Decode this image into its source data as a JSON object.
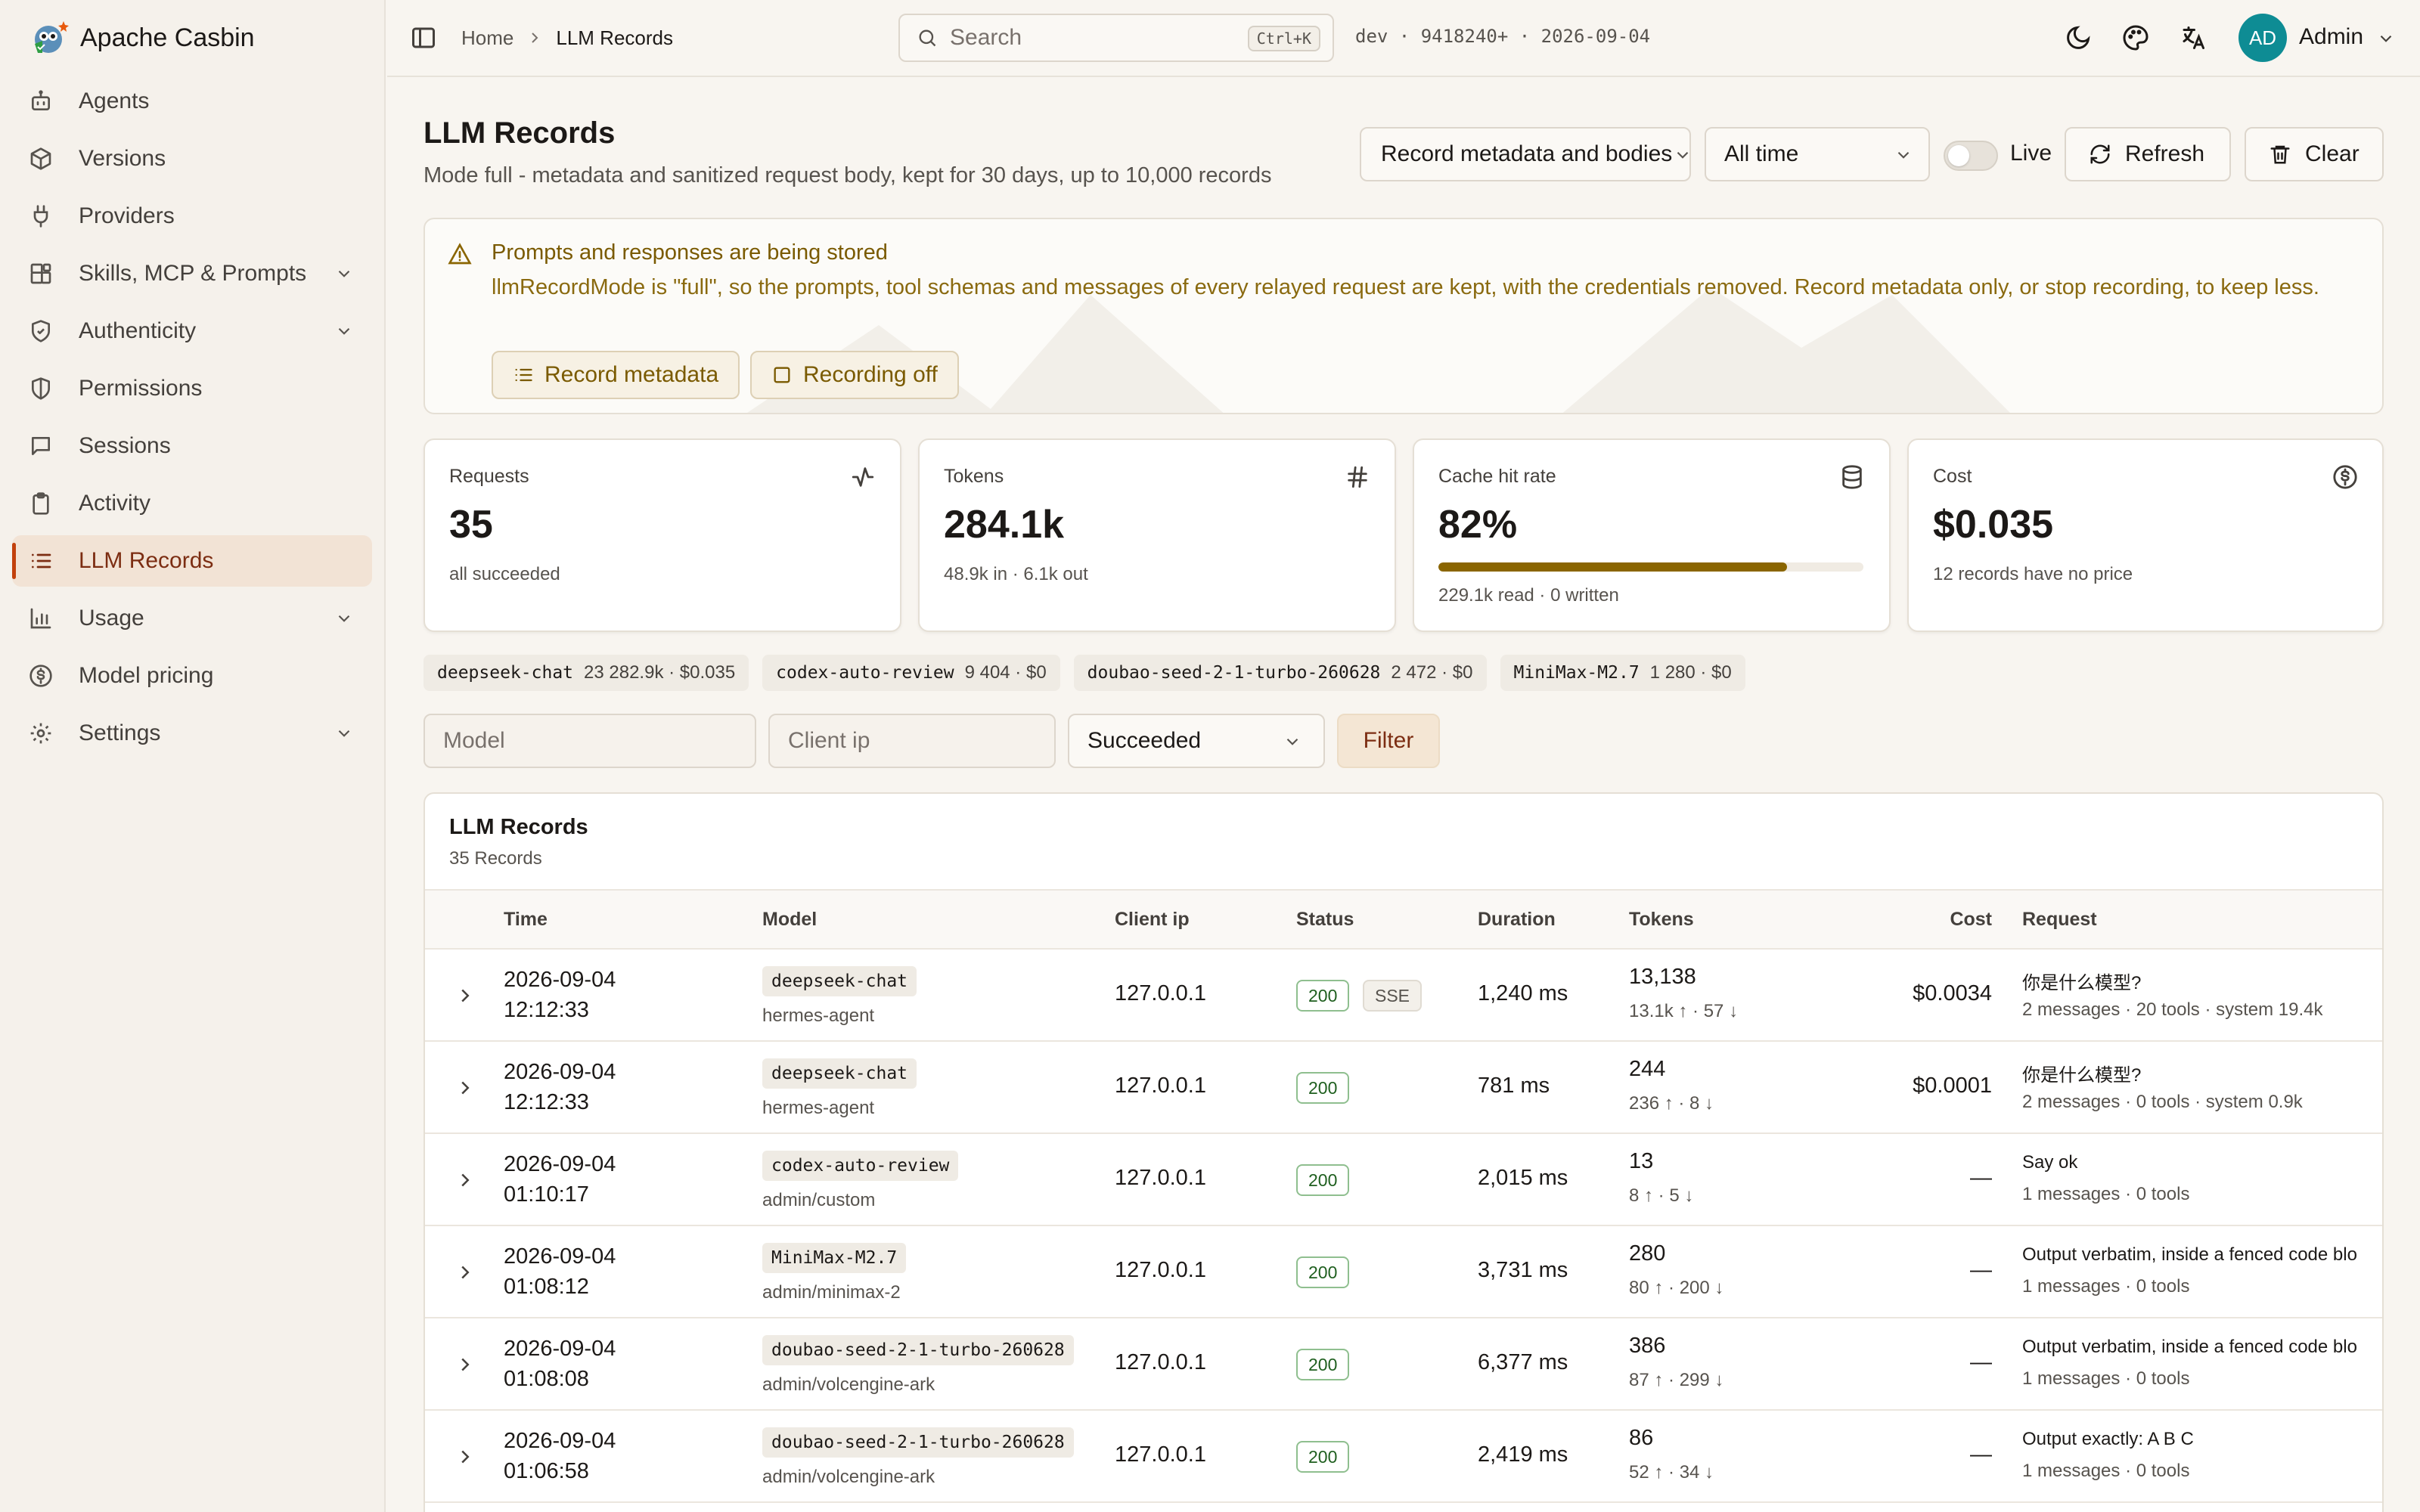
{
  "app": {
    "name": "Apache Casbin"
  },
  "sidebar": {
    "items": [
      {
        "label": "Agents",
        "icon": "bot-icon",
        "expandable": false
      },
      {
        "label": "Versions",
        "icon": "package-icon",
        "expandable": false
      },
      {
        "label": "Providers",
        "icon": "plug-icon",
        "expandable": false
      },
      {
        "label": "Skills, MCP & Prompts",
        "icon": "blocks-icon",
        "expandable": true
      },
      {
        "label": "Authenticity",
        "icon": "shield-check-icon",
        "expandable": true
      },
      {
        "label": "Permissions",
        "icon": "shield-half-icon",
        "expandable": false
      },
      {
        "label": "Sessions",
        "icon": "message-square-icon",
        "expandable": false
      },
      {
        "label": "Activity",
        "icon": "clipboard-icon",
        "expandable": false
      },
      {
        "label": "LLM Records",
        "icon": "list-icon",
        "expandable": false,
        "active": true
      },
      {
        "label": "Usage",
        "icon": "bar-chart-icon",
        "expandable": true
      },
      {
        "label": "Model pricing",
        "icon": "dollar-circle-icon",
        "expandable": false
      },
      {
        "label": "Settings",
        "icon": "gear-icon",
        "expandable": true
      }
    ]
  },
  "topbar": {
    "breadcrumb": {
      "home": "Home",
      "current": "LLM Records"
    },
    "search": {
      "placeholder": "Search",
      "shortcut": "Ctrl+K"
    },
    "env": "dev · 9418240+ · 2026-09-04",
    "user": {
      "initials": "AD",
      "name": "Admin"
    }
  },
  "page": {
    "title": "LLM Records",
    "subtitle": "Mode full - metadata and sanitized request body, kept for 30 days, up to 10,000 records",
    "controls": {
      "mode_select": "Record metadata and bodies",
      "range_select": "All time",
      "live_label": "Live",
      "refresh_label": "Refresh",
      "clear_label": "Clear"
    }
  },
  "alert": {
    "title": "Prompts and responses are being stored",
    "body": "llmRecordMode is \"full\", so the prompts, tool schemas and messages of every relayed request are kept, with the credentials removed. Record metadata only, or stop recording, to keep less.",
    "btn_metadata": "Record metadata",
    "btn_off": "Recording off"
  },
  "stats": {
    "requests": {
      "label": "Requests",
      "value": "35",
      "sub": "all succeeded"
    },
    "tokens": {
      "label": "Tokens",
      "value": "284.1k",
      "sub": "48.9k in · 6.1k out"
    },
    "cache": {
      "label": "Cache hit rate",
      "value": "82%",
      "fill": 0.82,
      "sub": "229.1k read · 0 written"
    },
    "cost": {
      "label": "Cost",
      "value": "$0.035",
      "sub": "12 records have no price"
    }
  },
  "model_chips": [
    {
      "name": "deepseek-chat",
      "stats": "23  282.9k · $0.035"
    },
    {
      "name": "codex-auto-review",
      "stats": "9  404 · $0"
    },
    {
      "name": "doubao-seed-2-1-turbo-260628",
      "stats": "2  472 · $0"
    },
    {
      "name": "MiniMax-M2.7",
      "stats": "1  280 · $0"
    }
  ],
  "filters": {
    "model_placeholder": "Model",
    "ip_placeholder": "Client ip",
    "status_value": "Succeeded",
    "filter_label": "Filter"
  },
  "table": {
    "title": "LLM Records",
    "count": "35 Records",
    "columns": {
      "time": "Time",
      "model": "Model",
      "ip": "Client ip",
      "status": "Status",
      "duration": "Duration",
      "tokens": "Tokens",
      "cost": "Cost",
      "request": "Request"
    },
    "rows": [
      {
        "date": "2026-09-04",
        "clock": "12:12:33",
        "model": "deepseek-chat",
        "agent": "hermes-agent",
        "ip": "127.0.0.1",
        "status": "200",
        "sse": "SSE",
        "duration": "1,240 ms",
        "tokens": "13,138",
        "tokens_sub": "13.1k ↑ · 57 ↓",
        "cost": "$0.0034",
        "request": "你是什么模型?",
        "request_sub": "2 messages · 20 tools · system 19.4k"
      },
      {
        "date": "2026-09-04",
        "clock": "12:12:33",
        "model": "deepseek-chat",
        "agent": "hermes-agent",
        "ip": "127.0.0.1",
        "status": "200",
        "sse": "",
        "duration": "781 ms",
        "tokens": "244",
        "tokens_sub": "236 ↑ · 8 ↓",
        "cost": "$0.0001",
        "request": "你是什么模型?",
        "request_sub": "2 messages · 0 tools · system 0.9k"
      },
      {
        "date": "2026-09-04",
        "clock": "01:10:17",
        "model": "codex-auto-review",
        "agent": "admin/custom",
        "ip": "127.0.0.1",
        "status": "200",
        "sse": "",
        "duration": "2,015 ms",
        "tokens": "13",
        "tokens_sub": "8 ↑ · 5 ↓",
        "cost": "—",
        "request": "Say ok",
        "request_sub": "1 messages · 0 tools"
      },
      {
        "date": "2026-09-04",
        "clock": "01:08:12",
        "model": "MiniMax-M2.7",
        "agent": "admin/minimax-2",
        "ip": "127.0.0.1",
        "status": "200",
        "sse": "",
        "duration": "3,731 ms",
        "tokens": "280",
        "tokens_sub": "80 ↑ · 200 ↓",
        "cost": "—",
        "request": "Output verbatim, inside a fenced code blo",
        "request_sub": "1 messages · 0 tools"
      },
      {
        "date": "2026-09-04",
        "clock": "01:08:08",
        "model": "doubao-seed-2-1-turbo-260628",
        "agent": "admin/volcengine-ark",
        "ip": "127.0.0.1",
        "status": "200",
        "sse": "",
        "duration": "6,377 ms",
        "tokens": "386",
        "tokens_sub": "87 ↑ · 299 ↓",
        "cost": "—",
        "request": "Output verbatim, inside a fenced code blo",
        "request_sub": "1 messages · 0 tools"
      },
      {
        "date": "2026-09-04",
        "clock": "01:06:58",
        "model": "doubao-seed-2-1-turbo-260628",
        "agent": "admin/volcengine-ark",
        "ip": "127.0.0.1",
        "status": "200",
        "sse": "",
        "duration": "2,419 ms",
        "tokens": "86",
        "tokens_sub": "52 ↑ · 34 ↓",
        "cost": "—",
        "request": "Output exactly: A B C",
        "request_sub": "1 messages · 0 tools"
      }
    ]
  },
  "colors": {
    "accent": "#c2410c",
    "active_bg": "#f2e3d5",
    "warning": "#8a6500",
    "avatar": "#0e8c94"
  }
}
